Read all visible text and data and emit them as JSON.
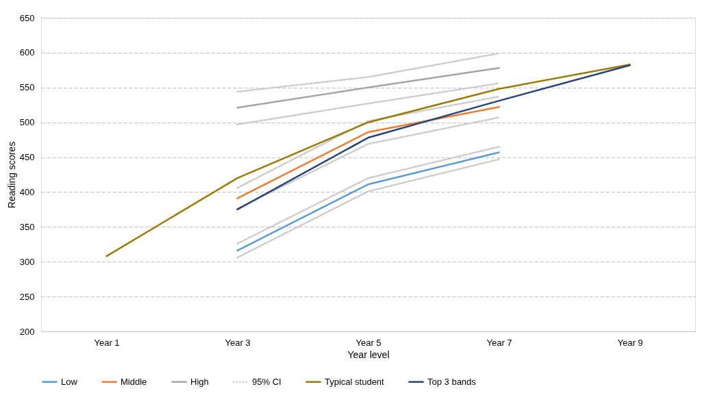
{
  "chart_data": {
    "type": "line",
    "xlabel": "Year level",
    "ylabel": "Reading scores",
    "categories": [
      "Year 1",
      "Year 3",
      "Year 5",
      "Year 7",
      "Year 9"
    ],
    "ylim": [
      200,
      650
    ],
    "yticks": [
      200,
      250,
      300,
      350,
      400,
      450,
      500,
      550,
      600,
      650
    ],
    "grid": "y",
    "legend": "bottom",
    "marker": "none",
    "series": [
      {
        "name": "Low",
        "color": "#5b9bd5",
        "values": [
          null,
          316,
          411,
          457,
          null
        ]
      },
      {
        "name": "Middle",
        "color": "#ed7d31",
        "values": [
          null,
          391,
          486,
          522,
          null
        ]
      },
      {
        "name": "High",
        "color": "#a5a5a5",
        "values": [
          null,
          521,
          550,
          578,
          null
        ]
      },
      {
        "name": "95% CI",
        "color": "#c9c9c9",
        "line_style": "dotted",
        "values": [
          null,
          544,
          565,
          599,
          null
        ]
      },
      {
        "color": "#c9c9c9",
        "line_style": "dotted",
        "values": [
          null,
          497,
          527,
          556,
          null
        ]
      },
      {
        "color": "#c9c9c9",
        "line_style": "dotted",
        "values": [
          null,
          406,
          502,
          537,
          null
        ]
      },
      {
        "color": "#c9c9c9",
        "line_style": "dotted",
        "values": [
          null,
          376,
          469,
          507,
          null
        ]
      },
      {
        "color": "#c9c9c9",
        "line_style": "dotted",
        "values": [
          null,
          326,
          420,
          465,
          null
        ]
      },
      {
        "color": "#c9c9c9",
        "line_style": "dotted",
        "values": [
          null,
          306,
          401,
          447,
          null
        ]
      },
      {
        "name": "Typical student",
        "color": "#9c7a00",
        "values": [
          308,
          420,
          500,
          548,
          583
        ]
      },
      {
        "name": "Top 3 bands",
        "color": "#264478",
        "values": [
          null,
          375,
          478,
          531,
          582
        ]
      }
    ]
  }
}
